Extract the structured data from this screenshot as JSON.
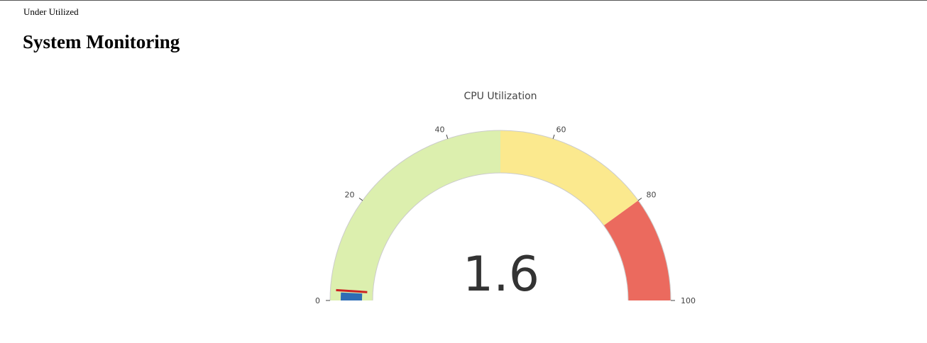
{
  "status": "Under Utilized",
  "page": {
    "title": "System Monitoring"
  },
  "chart_data": {
    "type": "gauge",
    "title": "CPU Utilization",
    "value": 1.6,
    "value_label": "1.6",
    "range": [
      0,
      100
    ],
    "ticks": [
      0,
      20,
      40,
      60,
      80,
      100
    ],
    "tick_labels": [
      "0",
      "20",
      "40",
      "60",
      "80",
      "100"
    ],
    "steps": [
      {
        "range": [
          0,
          50
        ],
        "color": "#dcefae"
      },
      {
        "range": [
          50,
          80
        ],
        "color": "#fbe98e"
      },
      {
        "range": [
          80,
          100
        ],
        "color": "#eb6a5e"
      }
    ],
    "bar_color": "#2f6db5",
    "threshold": {
      "value": 2,
      "color": "#cc2222"
    }
  }
}
